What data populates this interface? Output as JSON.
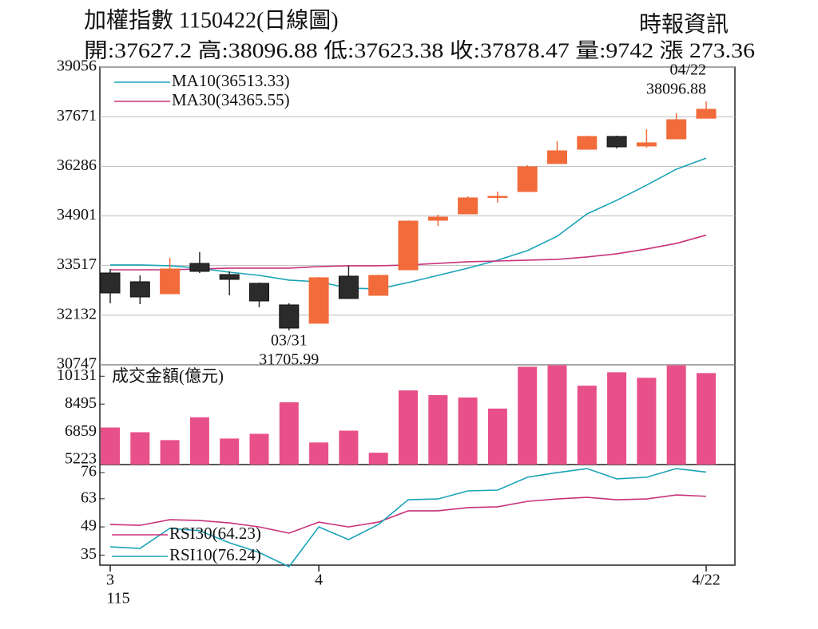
{
  "chart_data": [
    {
      "type": "candlestick",
      "title": "加權指數 1150422(日線圖)",
      "subtitle": "開:37627.2 高:38096.88 低:37623.38 收:37878.47 量:9742 漲 273.36",
      "source": "時報資訊",
      "up_color": "#f26b3a",
      "down_color": "#2b2b2b",
      "open": [
        33309,
        33064,
        32730,
        33576,
        33265,
        33020,
        32418,
        31906,
        33220,
        32685,
        33398,
        34780,
        34958,
        35426,
        35582,
        36362,
        36762,
        37119,
        36852,
        37052,
        37627.2
      ],
      "high": [
        33421,
        33242,
        33733,
        33888,
        33354,
        33042,
        32462,
        33198,
        33510,
        33265,
        34780,
        34936,
        35448,
        35582,
        36317,
        36985,
        37141,
        37141,
        37319,
        37765,
        38096.88
      ],
      "low": [
        32462,
        32440,
        32730,
        33309,
        32685,
        32351,
        31705.99,
        31906,
        32596,
        32685,
        33398,
        34624,
        34958,
        35270,
        35582,
        36362,
        36762,
        36785,
        36807,
        37052,
        37623.38
      ],
      "close": [
        32752,
        32641,
        33421,
        33354,
        33131,
        32529,
        31772,
        33176,
        32596,
        33242,
        34757,
        34869,
        35404,
        35448,
        36272,
        36718,
        37119,
        36829,
        36941,
        37587,
        37878.47
      ],
      "series": [
        {
          "name": "MA10(36513.33)",
          "color": "#1aa3b8",
          "values": [
            33532,
            33532,
            33510,
            33443,
            33331,
            33242,
            33109,
            33064,
            32886,
            32864,
            33042,
            33242,
            33443,
            33666,
            33933,
            34334,
            34958,
            35337,
            35760,
            36206,
            36513.33
          ]
        },
        {
          "name": "MA30(34365.55)",
          "color": "#c8327a",
          "values": [
            33398,
            33398,
            33398,
            33421,
            33443,
            33443,
            33443,
            33487,
            33510,
            33510,
            33532,
            33577,
            33621,
            33643,
            33666,
            33688,
            33755,
            33844,
            33978,
            34134,
            34365.55
          ]
        }
      ],
      "annotations": [
        {
          "date": "03/31",
          "value": 31705.99
        },
        {
          "date": "04/22",
          "value": 38096.88
        }
      ],
      "ylim": [
        30747,
        39056
      ],
      "yticks": [
        30747,
        32132,
        33517,
        34901,
        36286,
        37671,
        39056
      ],
      "grid": true
    },
    {
      "type": "bar",
      "title": "成交金額(億元)",
      "color": "#e8508a",
      "values": [
        7122,
        6844,
        6381,
        7723,
        6474,
        6752,
        8602,
        6243,
        6937,
        5641,
        9296,
        9019,
        8880,
        8232,
        10684,
        10777,
        9574,
        10360,
        10037,
        10777,
        10314
      ],
      "ylim": [
        4947,
        10800
      ],
      "yticks": [
        5223,
        6859,
        8495,
        10131
      ],
      "grid": false
    },
    {
      "type": "line",
      "categories": [
        "3",
        null,
        null,
        null,
        null,
        null,
        null,
        "4",
        null,
        null,
        null,
        null,
        null,
        null,
        null,
        null,
        null,
        null,
        null,
        null,
        "4/22"
      ],
      "year_label": "115",
      "series": [
        {
          "name": "RSI30(64.23)",
          "color": "#c8327a",
          "values": [
            50.2,
            49.8,
            52.6,
            52.2,
            51.0,
            49.0,
            45.9,
            51.4,
            49.0,
            51.4,
            57.0,
            57.0,
            58.6,
            59.0,
            61.7,
            62.9,
            63.7,
            62.5,
            62.9,
            64.9,
            64.23
          ]
        },
        {
          "name": "RSI10(76.24)",
          "color": "#1aa3b8",
          "values": [
            39.1,
            38.3,
            48.3,
            47.1,
            41.1,
            36.3,
            29.2,
            49.0,
            42.7,
            50.2,
            62.5,
            62.9,
            66.9,
            67.3,
            73.7,
            76.0,
            78.0,
            72.9,
            73.7,
            78.0,
            76.24
          ]
        }
      ],
      "ylim": [
        30,
        80
      ],
      "yticks": [
        35,
        49,
        63,
        76
      ],
      "grid": false
    }
  ]
}
